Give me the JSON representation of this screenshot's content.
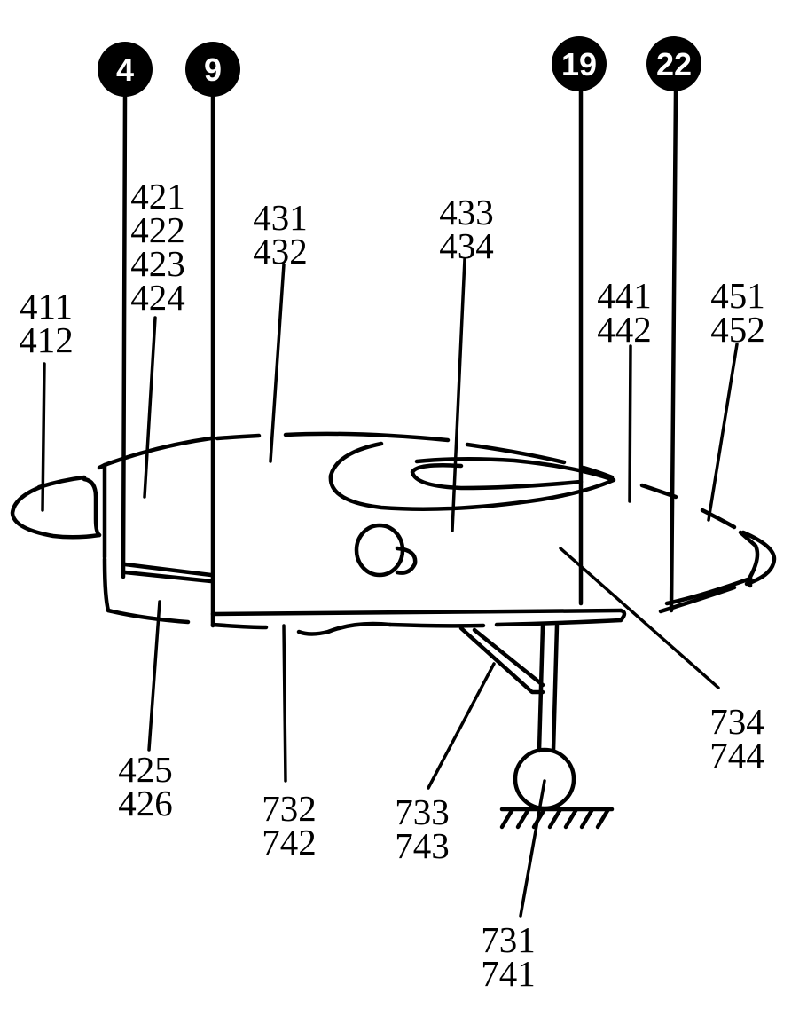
{
  "colors": {
    "ink": "#000000",
    "paper": "#ffffff"
  },
  "stations": [
    "4",
    "9",
    "19",
    "22"
  ],
  "labels": {
    "nose": [
      "411",
      "412"
    ],
    "front_upper": [
      "421",
      "422",
      "423",
      "424"
    ],
    "front_lower": [
      "425",
      "426"
    ],
    "mid_upper": [
      "431",
      "432"
    ],
    "mid_side": [
      "433",
      "434"
    ],
    "rear_upper": [
      "441",
      "442"
    ],
    "tail": [
      "451",
      "452"
    ],
    "belly": [
      "732",
      "742"
    ],
    "strut": [
      "733",
      "743"
    ],
    "wheel": [
      "731",
      "741"
    ],
    "rear_lower": [
      "734",
      "744"
    ]
  }
}
